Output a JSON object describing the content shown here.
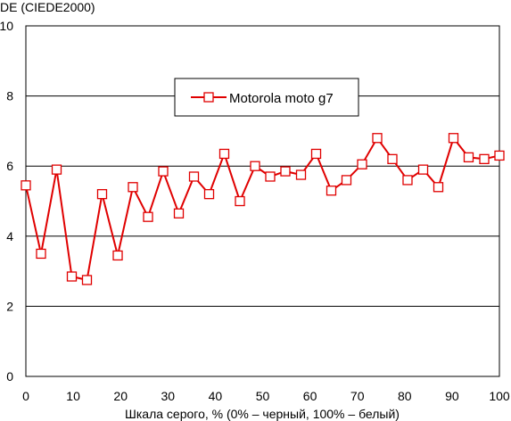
{
  "chart_data": {
    "type": "line",
    "title": "",
    "ylabel": "DE (CIEDE2000)",
    "xlabel": "Шкала серого, % (0% – черный, 100% – белый)",
    "xlim": [
      0,
      100
    ],
    "ylim": [
      0,
      10
    ],
    "x_ticks": [
      "0",
      "10",
      "20",
      "30",
      "40",
      "50",
      "60",
      "70",
      "80",
      "90",
      "100"
    ],
    "y_ticks": [
      "0",
      "2",
      "4",
      "6",
      "8",
      "10"
    ],
    "grid": "horizontal",
    "legend_position": "top-center",
    "series": [
      {
        "name": "Motorola moto g7",
        "color": "#e00000",
        "marker": "square-open",
        "x": [
          0,
          3.2,
          6.5,
          9.7,
          12.9,
          16.1,
          19.4,
          22.6,
          25.8,
          29.0,
          32.3,
          35.5,
          38.7,
          41.9,
          45.2,
          48.4,
          51.6,
          54.8,
          58.1,
          61.3,
          64.5,
          67.7,
          71.0,
          74.2,
          77.4,
          80.6,
          83.9,
          87.1,
          90.3,
          93.5,
          96.8,
          100
        ],
        "y": [
          5.45,
          3.5,
          5.9,
          2.85,
          2.75,
          5.2,
          3.45,
          5.4,
          4.55,
          5.85,
          4.65,
          5.7,
          5.2,
          6.35,
          5.0,
          6.0,
          5.7,
          5.85,
          5.75,
          6.35,
          5.3,
          5.6,
          6.05,
          6.8,
          6.2,
          5.6,
          5.9,
          5.4,
          6.8,
          6.25,
          6.2,
          6.3
        ]
      }
    ]
  }
}
